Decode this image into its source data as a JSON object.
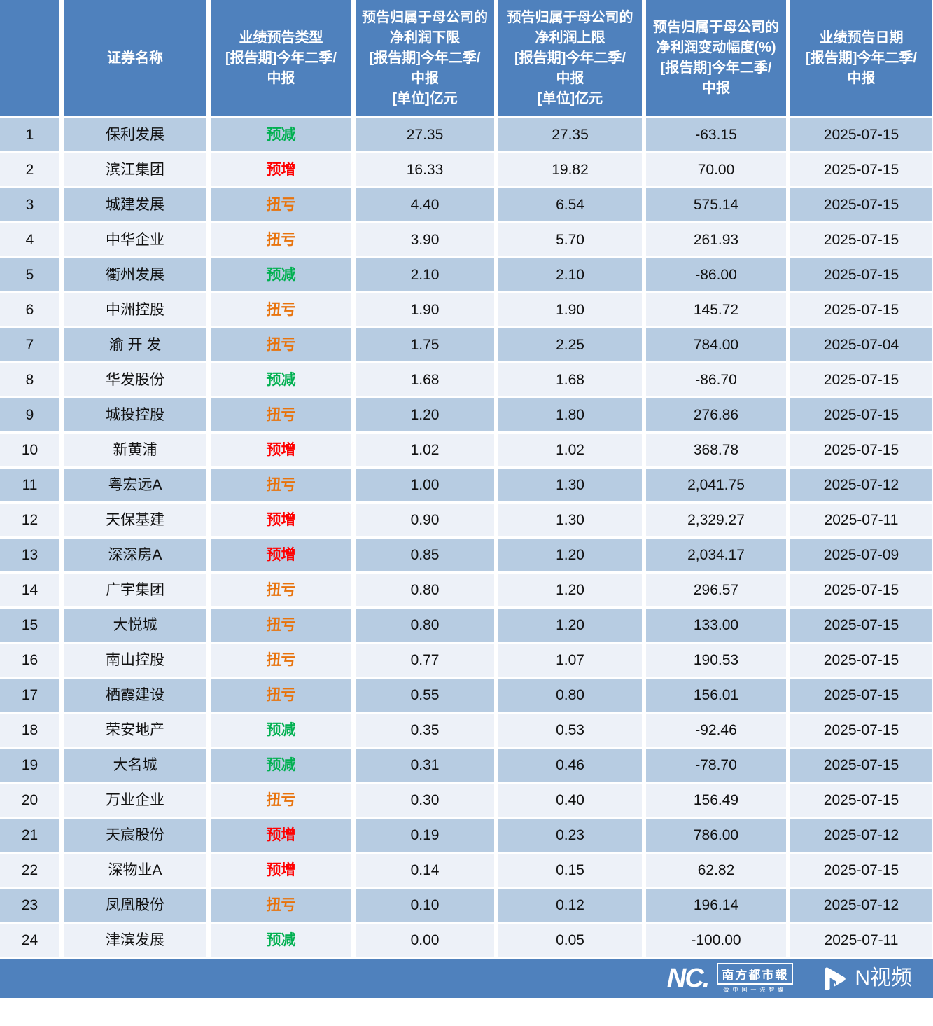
{
  "chart_data": {
    "type": "table",
    "columns": [
      {
        "key": "index",
        "label": ""
      },
      {
        "key": "name",
        "label": "证券名称"
      },
      {
        "key": "type",
        "label": "业绩预告类型\n[报告期]今年二季/\n中报"
      },
      {
        "key": "lower",
        "label": "预告归属于母公司的\n净利润下限\n[报告期]今年二季/\n中报\n[单位]亿元"
      },
      {
        "key": "upper",
        "label": "预告归属于母公司的\n净利润上限\n[报告期]今年二季/\n中报\n[单位]亿元"
      },
      {
        "key": "change",
        "label": "预告归属于母公司的\n净利润变动幅度(%)\n[报告期]今年二季/\n中报"
      },
      {
        "key": "date",
        "label": "业绩预告日期\n[报告期]今年二季/\n中报"
      }
    ],
    "rows": [
      {
        "index": "1",
        "name": "保利发展",
        "type": "预减",
        "type_color": "green",
        "lower": "27.35",
        "upper": "27.35",
        "change": "-63.15",
        "date": "2025-07-15"
      },
      {
        "index": "2",
        "name": "滨江集团",
        "type": "预增",
        "type_color": "red",
        "lower": "16.33",
        "upper": "19.82",
        "change": "70.00",
        "date": "2025-07-15"
      },
      {
        "index": "3",
        "name": "城建发展",
        "type": "扭亏",
        "type_color": "orange",
        "lower": "4.40",
        "upper": "6.54",
        "change": "575.14",
        "date": "2025-07-15"
      },
      {
        "index": "4",
        "name": "中华企业",
        "type": "扭亏",
        "type_color": "orange",
        "lower": "3.90",
        "upper": "5.70",
        "change": "261.93",
        "date": "2025-07-15"
      },
      {
        "index": "5",
        "name": "衢州发展",
        "type": "预减",
        "type_color": "green",
        "lower": "2.10",
        "upper": "2.10",
        "change": "-86.00",
        "date": "2025-07-15"
      },
      {
        "index": "6",
        "name": "中洲控股",
        "type": "扭亏",
        "type_color": "orange",
        "lower": "1.90",
        "upper": "1.90",
        "change": "145.72",
        "date": "2025-07-15"
      },
      {
        "index": "7",
        "name": "渝 开 发",
        "type": "扭亏",
        "type_color": "orange",
        "lower": "1.75",
        "upper": "2.25",
        "change": "784.00",
        "date": "2025-07-04"
      },
      {
        "index": "8",
        "name": "华发股份",
        "type": "预减",
        "type_color": "green",
        "lower": "1.68",
        "upper": "1.68",
        "change": "-86.70",
        "date": "2025-07-15"
      },
      {
        "index": "9",
        "name": "城投控股",
        "type": "扭亏",
        "type_color": "orange",
        "lower": "1.20",
        "upper": "1.80",
        "change": "276.86",
        "date": "2025-07-15"
      },
      {
        "index": "10",
        "name": "新黄浦",
        "type": "预增",
        "type_color": "red",
        "lower": "1.02",
        "upper": "1.02",
        "change": "368.78",
        "date": "2025-07-15"
      },
      {
        "index": "11",
        "name": "粤宏远A",
        "type": "扭亏",
        "type_color": "orange",
        "lower": "1.00",
        "upper": "1.30",
        "change": "2,041.75",
        "date": "2025-07-12"
      },
      {
        "index": "12",
        "name": "天保基建",
        "type": "预增",
        "type_color": "red",
        "lower": "0.90",
        "upper": "1.30",
        "change": "2,329.27",
        "date": "2025-07-11"
      },
      {
        "index": "13",
        "name": "深深房A",
        "type": "预增",
        "type_color": "red",
        "lower": "0.85",
        "upper": "1.20",
        "change": "2,034.17",
        "date": "2025-07-09"
      },
      {
        "index": "14",
        "name": "广宇集团",
        "type": "扭亏",
        "type_color": "orange",
        "lower": "0.80",
        "upper": "1.20",
        "change": "296.57",
        "date": "2025-07-15"
      },
      {
        "index": "15",
        "name": "大悦城",
        "type": "扭亏",
        "type_color": "orange",
        "lower": "0.80",
        "upper": "1.20",
        "change": "133.00",
        "date": "2025-07-15"
      },
      {
        "index": "16",
        "name": "南山控股",
        "type": "扭亏",
        "type_color": "orange",
        "lower": "0.77",
        "upper": "1.07",
        "change": "190.53",
        "date": "2025-07-15"
      },
      {
        "index": "17",
        "name": "栖霞建设",
        "type": "扭亏",
        "type_color": "orange",
        "lower": "0.55",
        "upper": "0.80",
        "change": "156.01",
        "date": "2025-07-15"
      },
      {
        "index": "18",
        "name": "荣安地产",
        "type": "预减",
        "type_color": "green",
        "lower": "0.35",
        "upper": "0.53",
        "change": "-92.46",
        "date": "2025-07-15"
      },
      {
        "index": "19",
        "name": "大名城",
        "type": "预减",
        "type_color": "green",
        "lower": "0.31",
        "upper": "0.46",
        "change": "-78.70",
        "date": "2025-07-15"
      },
      {
        "index": "20",
        "name": "万业企业",
        "type": "扭亏",
        "type_color": "orange",
        "lower": "0.30",
        "upper": "0.40",
        "change": "156.49",
        "date": "2025-07-15"
      },
      {
        "index": "21",
        "name": "天宸股份",
        "type": "预增",
        "type_color": "red",
        "lower": "0.19",
        "upper": "0.23",
        "change": "786.00",
        "date": "2025-07-12"
      },
      {
        "index": "22",
        "name": "深物业A",
        "type": "预增",
        "type_color": "red",
        "lower": "0.14",
        "upper": "0.15",
        "change": "62.82",
        "date": "2025-07-15"
      },
      {
        "index": "23",
        "name": "凤凰股份",
        "type": "扭亏",
        "type_color": "orange",
        "lower": "0.10",
        "upper": "0.12",
        "change": "196.14",
        "date": "2025-07-12"
      },
      {
        "index": "24",
        "name": "津滨发展",
        "type": "预减",
        "type_color": "green",
        "lower": "0.00",
        "upper": "0.05",
        "change": "-100.00",
        "date": "2025-07-11"
      }
    ]
  },
  "footer": {
    "brand_text": "NC.",
    "paper_name": "南方都市報",
    "paper_tagline": "做中国一流智媒",
    "video_label": "N视频"
  },
  "colors": {
    "header_bg": "#4F81BD",
    "row_dark": "#B7CCE2",
    "row_light": "#EDF1F8",
    "footer_bg": "#4F81BD",
    "type_green": "#00B050",
    "type_red": "#FF0000",
    "type_orange": "#E8730C"
  }
}
